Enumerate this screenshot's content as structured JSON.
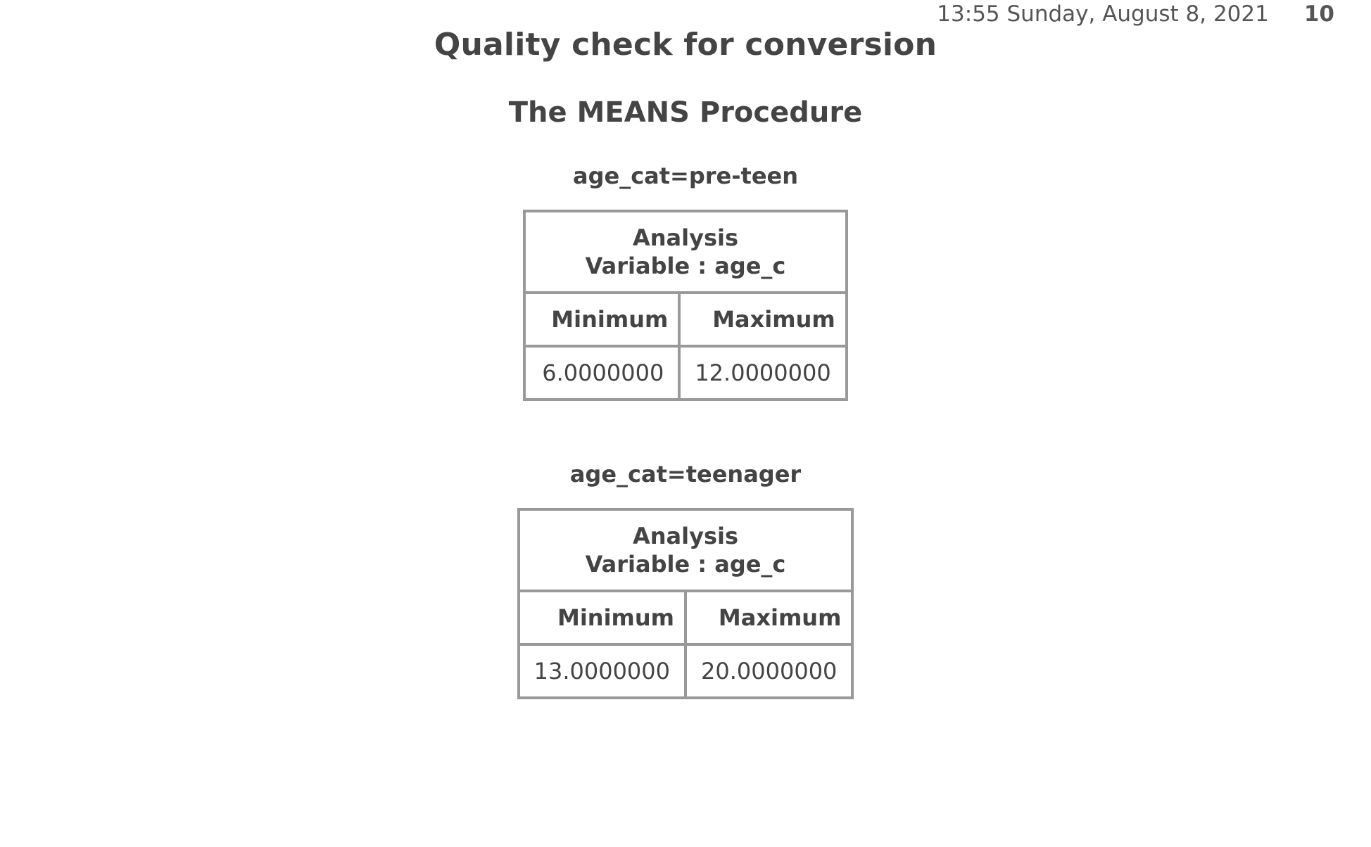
{
  "header": {
    "timestamp": "13:55 Sunday, August 8, 2021",
    "page_number": "10"
  },
  "report": {
    "title": "Quality check for conversion",
    "procedure": "The MEANS Procedure"
  },
  "groups": [
    {
      "by_label": "age_cat=pre-teen",
      "analysis_line1": "Analysis",
      "analysis_line2": "Variable : age_c",
      "columns": [
        "Minimum",
        "Maximum"
      ],
      "values": [
        "6.0000000",
        "12.0000000"
      ]
    },
    {
      "by_label": "age_cat=teenager",
      "analysis_line1": "Analysis",
      "analysis_line2": "Variable : age_c",
      "columns": [
        "Minimum",
        "Maximum"
      ],
      "values": [
        "13.0000000",
        "20.0000000"
      ]
    }
  ]
}
